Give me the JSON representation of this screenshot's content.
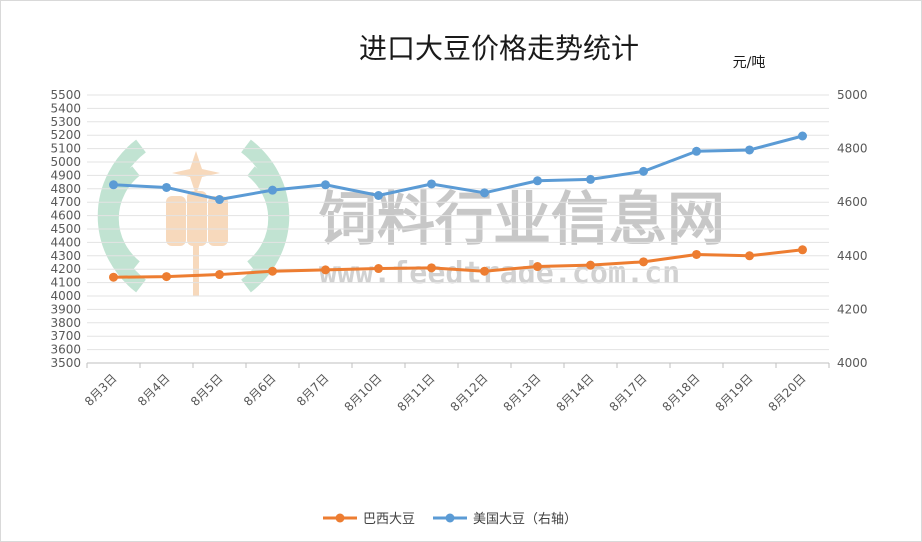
{
  "chart_data": {
    "type": "line",
    "title": "进口大豆价格走势统计",
    "unit_label": "元/吨",
    "categories": [
      "8月3日",
      "8月4日",
      "8月5日",
      "8月6日",
      "8月7日",
      "8月10日",
      "8月11日",
      "8月12日",
      "8月13日",
      "8月14日",
      "8月17日",
      "8月18日",
      "8月19日",
      "8月20日"
    ],
    "series": [
      {
        "name": "巴西大豆",
        "axis": "left",
        "color": "#ed7d31",
        "values": [
          4140,
          4145,
          4160,
          4185,
          4195,
          4205,
          4210,
          4185,
          4220,
          4230,
          4255,
          4310,
          4300,
          4345
        ]
      },
      {
        "name": "美国大豆（右轴）",
        "axis": "right",
        "color": "#5b9bd5",
        "values": [
          4665,
          4655,
          4610,
          4645,
          4665,
          4625,
          4668,
          4635,
          4680,
          4685,
          4715,
          4790,
          4795,
          4847
        ]
      }
    ],
    "left_axis": {
      "min": 3500,
      "max": 5500,
      "step": 100
    },
    "right_axis": {
      "min": 4000,
      "max": 5000,
      "step": 200
    },
    "grid": true,
    "legend_position": "bottom"
  },
  "watermark": {
    "text": "饲料行业信息网",
    "url": "www.feedtrade.com.cn",
    "logo_colors": [
      "#a8d8bf",
      "#f5c9a0"
    ]
  }
}
